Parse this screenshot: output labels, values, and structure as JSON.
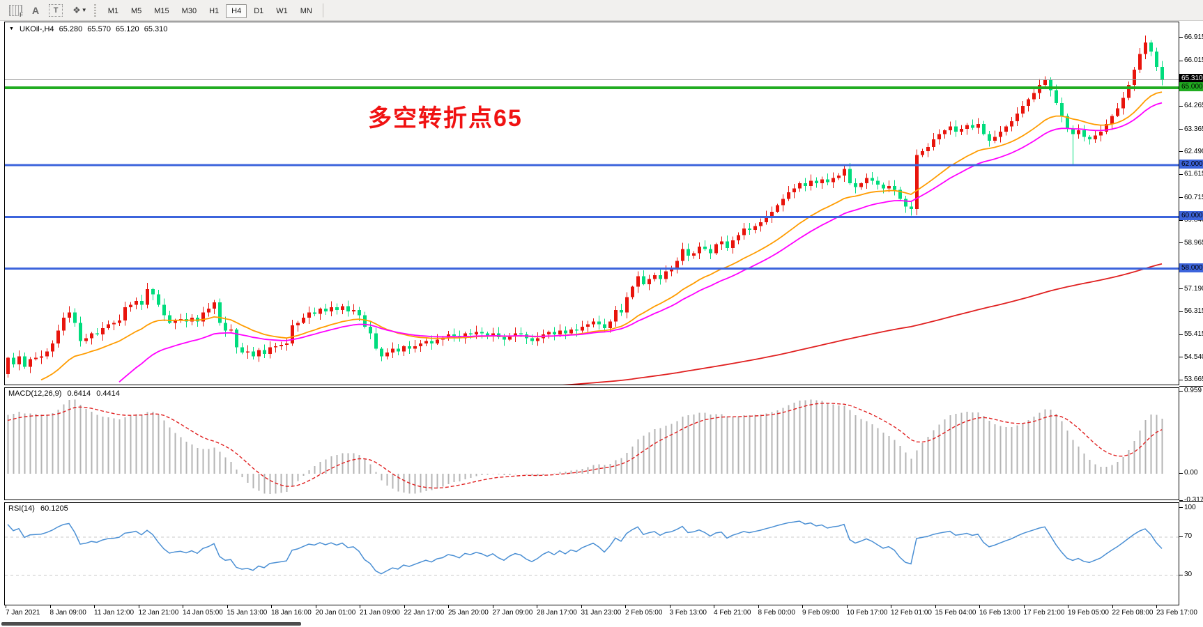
{
  "toolbar": {
    "icons": {
      "grid_f": "F",
      "font": "A",
      "text": "T",
      "cursor": "❖",
      "caret": "▼"
    },
    "timeframes": [
      "M1",
      "M5",
      "M15",
      "M30",
      "H1",
      "H4",
      "D1",
      "W1",
      "MN"
    ],
    "active_timeframe": "H4"
  },
  "chart": {
    "info": {
      "dropdown": "▼",
      "symbol": "UKOil-,H4",
      "open": "65.280",
      "high": "65.570",
      "low": "65.120",
      "close": "65.310"
    },
    "annotation": {
      "text": "多空转折点65",
      "color": "#f01212"
    },
    "price_axis": {
      "ticks": [
        "66.915",
        "66.015",
        "64.265",
        "63.365",
        "62.490",
        "61.615",
        "60.715",
        "59.840",
        "58.965",
        "57.190",
        "56.315",
        "55.415",
        "54.540",
        "53.665"
      ],
      "badges": [
        {
          "text": "65.310",
          "price": 65.31,
          "bg": "#000000",
          "fg": "#ffffff"
        },
        {
          "text": "65.000",
          "price": 65.0,
          "bg": "#21ac21",
          "fg": "#000000"
        },
        {
          "text": "62.000",
          "price": 62.0,
          "bg": "#3c64dc",
          "fg": "#000000"
        },
        {
          "text": "60.000",
          "price": 60.0,
          "bg": "#3c64dc",
          "fg": "#000000"
        },
        {
          "text": "58.000",
          "price": 58.0,
          "bg": "#3c64dc",
          "fg": "#000000"
        }
      ]
    },
    "time_axis": [
      "7 Jan 2021",
      "8 Jan 09:00",
      "11 Jan 12:00",
      "12 Jan 21:00",
      "14 Jan 05:00",
      "15 Jan 13:00",
      "18 Jan 16:00",
      "20 Jan 01:00",
      "21 Jan 09:00",
      "22 Jan 17:00",
      "25 Jan 20:00",
      "27 Jan 09:00",
      "28 Jan 17:00",
      "31 Jan 23:00",
      "2 Feb 05:00",
      "3 Feb 13:00",
      "4 Feb 21:00",
      "8 Feb 00:00",
      "9 Feb 09:00",
      "10 Feb 17:00",
      "12 Feb 01:00",
      "15 Feb 04:00",
      "16 Feb 13:00",
      "17 Feb 21:00",
      "19 Feb 05:00",
      "22 Feb 08:00",
      "23 Feb 17:00"
    ]
  },
  "macd": {
    "label": "MACD(12,26,9)",
    "value_main": "0.6414",
    "value_signal": "0.4414",
    "axis_labels": [
      "0.959",
      "0.00",
      "-0.3171"
    ],
    "axis_values": [
      0.959,
      0.0,
      -0.3171
    ]
  },
  "rsi": {
    "label": "RSI(14)",
    "value": "60.1205",
    "axis_labels": [
      "100",
      "70",
      "30"
    ],
    "axis_values": [
      100,
      70,
      30
    ],
    "levels": [
      70,
      30
    ]
  },
  "chart_data": {
    "type": "candlestick",
    "symbol": "UKOil-",
    "timeframe": "H4",
    "last_ohlc": {
      "open": 65.28,
      "high": 65.57,
      "low": 65.12,
      "close": 65.31
    },
    "price_range": {
      "max": 67.53,
      "min": 53.46
    },
    "closes": [
      54.55,
      54.3,
      54.6,
      54.2,
      54.5,
      54.55,
      54.6,
      54.8,
      55.1,
      55.6,
      56.1,
      56.3,
      55.9,
      55.2,
      55.3,
      55.5,
      55.45,
      55.7,
      55.85,
      55.9,
      56.0,
      56.5,
      56.6,
      56.75,
      56.6,
      57.2,
      57.0,
      56.6,
      56.2,
      55.9,
      56.0,
      56.05,
      55.95,
      56.1,
      55.95,
      56.3,
      56.45,
      56.7,
      55.9,
      55.6,
      55.65,
      54.95,
      54.75,
      54.8,
      54.6,
      54.85,
      54.7,
      54.95,
      55.0,
      55.05,
      55.1,
      55.8,
      55.9,
      56.1,
      56.3,
      56.25,
      56.45,
      56.35,
      56.5,
      56.4,
      56.55,
      56.35,
      56.4,
      56.2,
      55.75,
      55.5,
      54.9,
      54.6,
      54.75,
      54.9,
      54.8,
      55.0,
      54.9,
      55.0,
      55.1,
      55.2,
      55.1,
      55.25,
      55.3,
      55.45,
      55.4,
      55.3,
      55.5,
      55.45,
      55.55,
      55.5,
      55.4,
      55.5,
      55.35,
      55.25,
      55.4,
      55.5,
      55.45,
      55.3,
      55.2,
      55.3,
      55.45,
      55.55,
      55.45,
      55.6,
      55.5,
      55.65,
      55.6,
      55.75,
      55.85,
      55.95,
      55.85,
      55.7,
      55.95,
      56.4,
      56.3,
      56.9,
      57.3,
      57.7,
      57.4,
      57.6,
      57.75,
      57.6,
      57.9,
      58.0,
      58.3,
      58.76,
      58.5,
      58.6,
      58.85,
      58.75,
      58.6,
      58.95,
      59.05,
      58.8,
      59.1,
      59.3,
      59.55,
      59.5,
      59.65,
      59.8,
      60.0,
      60.2,
      60.45,
      60.7,
      60.95,
      61.1,
      61.3,
      61.2,
      61.4,
      61.3,
      61.45,
      61.35,
      61.5,
      61.6,
      61.85,
      61.3,
      61.15,
      61.3,
      61.5,
      61.4,
      61.25,
      61.1,
      61.2,
      61.05,
      60.7,
      60.4,
      60.3,
      62.4,
      62.55,
      62.7,
      63.0,
      63.2,
      63.35,
      63.5,
      63.3,
      63.4,
      63.55,
      63.45,
      63.6,
      63.2,
      62.95,
      63.1,
      63.3,
      63.5,
      63.7,
      64.0,
      64.3,
      64.55,
      64.8,
      65.1,
      65.3,
      64.9,
      64.4,
      63.9,
      63.4,
      63.2,
      63.35,
      63.1,
      63.0,
      63.15,
      63.3,
      63.6,
      63.9,
      64.2,
      64.6,
      65.1,
      65.7,
      66.3,
      66.75,
      66.4,
      65.8,
      65.31
    ],
    "warmup": {
      "start": 49.7,
      "step": 0.105,
      "count": 40,
      "alt_even": -0.07,
      "alt_odd": 0.12
    },
    "wick_amp": 0.2,
    "wick_min": 0.04,
    "high_clamp": 67.05,
    "low_clamp": 53.55,
    "wick_overrides": [
      {
        "i": 0,
        "low": 53.78
      },
      {
        "i": 11,
        "high": 56.55
      },
      {
        "i": 25,
        "high": 57.45
      },
      {
        "i": 67,
        "low": 54.42
      },
      {
        "i": 150,
        "high": 62.0
      },
      {
        "i": 162,
        "low": 60.05
      },
      {
        "i": 191,
        "low": 62.03
      },
      {
        "i": 204,
        "high": 67.02
      }
    ],
    "colors": {
      "up": "#e8140c",
      "down": "#00dc7d",
      "macd_hist": "#b4b4b4",
      "macd_signal": "#e02020",
      "rsi_line": "#4a8fd4",
      "current_line": "#999999"
    },
    "moving_averages": [
      {
        "name": "fast-ma",
        "period": 20,
        "start": 6,
        "seed": 53.6,
        "color": "#ff9c00"
      },
      {
        "name": "medium-ma",
        "period": 30,
        "start": 20,
        "seed": 53.45,
        "color": "#ff00ff"
      },
      {
        "name": "slow-ma",
        "period": 260,
        "start": 98,
        "seed": 53.45,
        "color": "#e02020"
      }
    ],
    "hlines": [
      {
        "price": 65.0,
        "color": "#21ac21",
        "width": 4
      },
      {
        "price": 62.0,
        "color": "#3c64dc",
        "width": 3
      },
      {
        "price": 60.0,
        "color": "#3c64dc",
        "width": 3
      },
      {
        "price": 58.0,
        "color": "#3c64dc",
        "width": 3
      }
    ],
    "current_price": 65.31,
    "macd_panel_range": {
      "max": 0.959,
      "min": -0.3171
    },
    "rsi_panel_range": {
      "max": 100,
      "min": 0
    }
  }
}
